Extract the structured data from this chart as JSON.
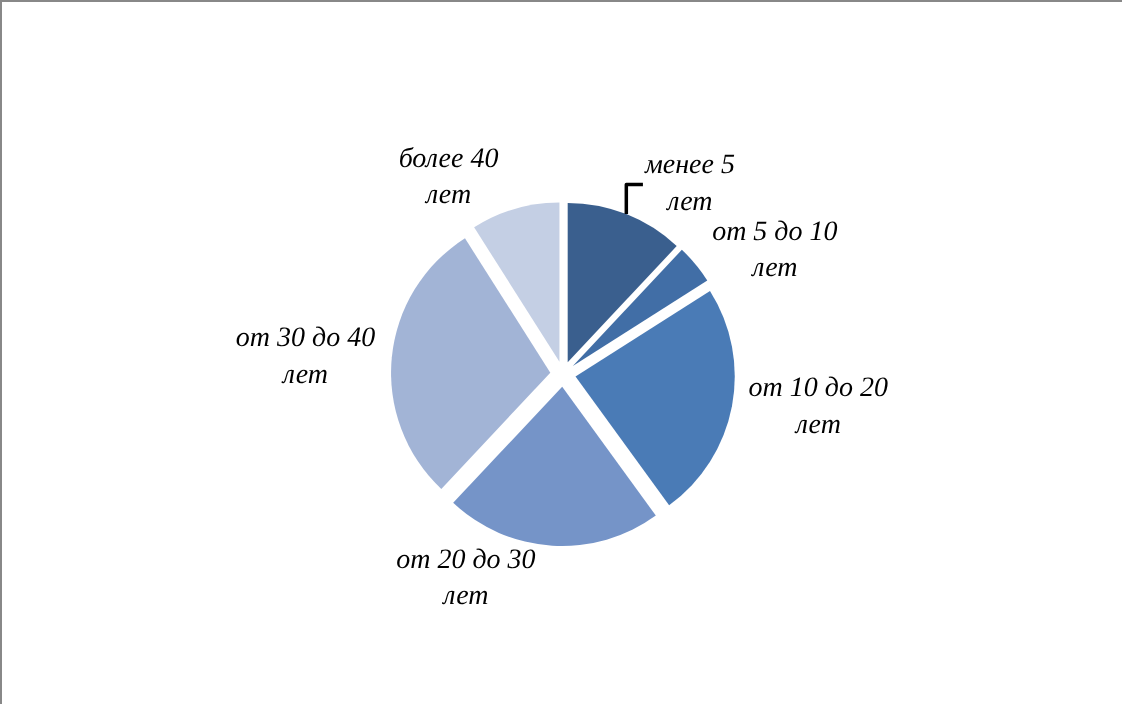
{
  "chart_data": {
    "type": "pie",
    "categories": [
      "менее 5 лет",
      "от 5 до 10 лет",
      "от 10 до 20 лет",
      "от 20 до 30 лет",
      "от 30 до 40 лет",
      "более 40 лет"
    ],
    "values": [
      12,
      4,
      24,
      22,
      29,
      9
    ],
    "colors": [
      "#3a5f8e",
      "#416ea6",
      "#4a7bb6",
      "#7594c8",
      "#a2b4d6",
      "#c4cfe4"
    ],
    "legend": false
  }
}
